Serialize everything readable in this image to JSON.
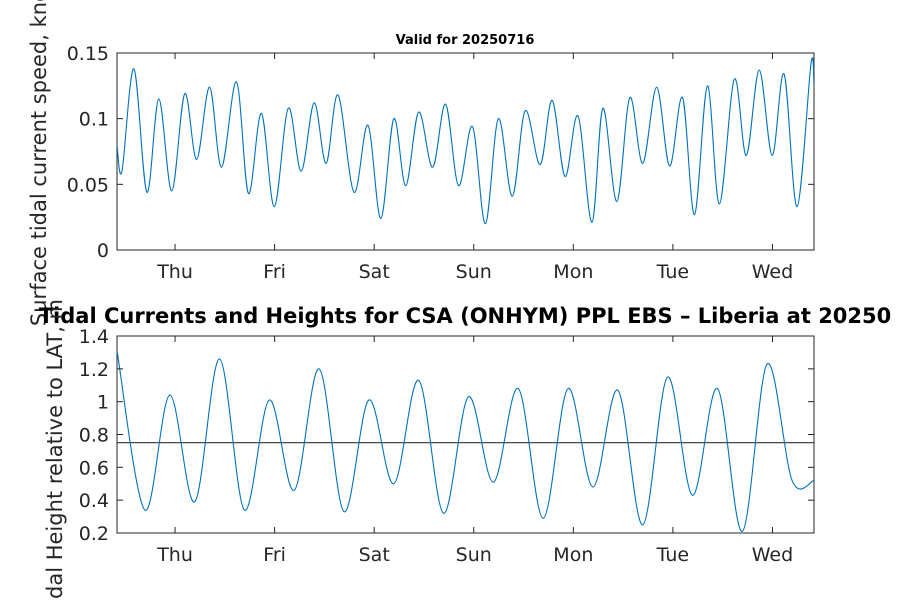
{
  "chart_data": [
    {
      "type": "line",
      "title": "Valid for 20250716",
      "ylabel": "Surface tidal current speed, knots",
      "ylim": [
        0,
        0.15
      ],
      "yticks": [
        0,
        0.05,
        0.1,
        0.15
      ],
      "ytick_labels": [
        "0",
        "0.05",
        "0.1",
        "0.15"
      ],
      "xlim": [
        0,
        7
      ],
      "xticks": [
        0.583,
        1.583,
        2.583,
        3.583,
        4.583,
        5.583,
        6.583
      ],
      "xtick_labels": [
        "Thu",
        "Fri",
        "Sat",
        "Sun",
        "Mon",
        "Tue",
        "Wed"
      ],
      "line_color": "#0072BD",
      "series": [
        {
          "x": [
            0.0,
            0.05,
            0.17,
            0.3,
            0.42,
            0.55,
            0.68,
            0.8,
            0.93,
            1.05,
            1.2,
            1.32,
            1.45,
            1.58,
            1.72,
            1.85,
            1.98,
            2.1,
            2.22,
            2.38,
            2.52,
            2.65,
            2.78,
            2.9,
            3.03,
            3.17,
            3.3,
            3.43,
            3.57,
            3.7,
            3.83,
            3.97,
            4.1,
            4.25,
            4.37,
            4.5,
            4.63,
            4.77,
            4.88,
            5.02,
            5.15,
            5.28,
            5.42,
            5.55,
            5.68,
            5.8,
            5.93,
            6.05,
            6.2,
            6.32,
            6.45,
            6.58,
            6.7,
            6.83,
            6.97,
            7.0
          ],
          "y": [
            0.08,
            0.06,
            0.138,
            0.044,
            0.115,
            0.045,
            0.119,
            0.069,
            0.124,
            0.063,
            0.128,
            0.043,
            0.104,
            0.033,
            0.108,
            0.06,
            0.112,
            0.066,
            0.118,
            0.044,
            0.095,
            0.024,
            0.1,
            0.049,
            0.105,
            0.063,
            0.111,
            0.049,
            0.094,
            0.02,
            0.1,
            0.041,
            0.106,
            0.065,
            0.114,
            0.056,
            0.102,
            0.021,
            0.108,
            0.037,
            0.116,
            0.066,
            0.124,
            0.064,
            0.116,
            0.027,
            0.125,
            0.035,
            0.13,
            0.072,
            0.137,
            0.072,
            0.134,
            0.033,
            0.142,
            0.125
          ]
        }
      ]
    },
    {
      "type": "line",
      "title": "Tidal Currents and Heights for CSA (ONHYM) PPL EBS  – Liberia at 20250",
      "ylabel": "Tidal Height relative to LAT, m",
      "ylim": [
        0.2,
        1.4
      ],
      "yticks": [
        0.2,
        0.4,
        0.6,
        0.8,
        1.0,
        1.2,
        1.4
      ],
      "ytick_labels": [
        "0.2",
        "0.4",
        "0.6",
        "0.8",
        "1",
        "1.2",
        "1.4"
      ],
      "xlim": [
        0,
        7
      ],
      "xticks": [
        0.583,
        1.583,
        2.583,
        3.583,
        4.583,
        5.583,
        6.583
      ],
      "xtick_labels": [
        "Thu",
        "Fri",
        "Sat",
        "Sun",
        "Mon",
        "Tue",
        "Wed"
      ],
      "reference_line": 0.75,
      "line_color": "#0072BD",
      "reference_color": "#333333",
      "series": [
        {
          "x": [
            0.0,
            0.28,
            0.53,
            0.78,
            1.03,
            1.28,
            1.53,
            1.78,
            2.03,
            2.28,
            2.53,
            2.78,
            3.03,
            3.28,
            3.53,
            3.78,
            4.03,
            4.28,
            4.53,
            4.78,
            5.03,
            5.28,
            5.53,
            5.78,
            6.03,
            6.28,
            6.53,
            6.78,
            7.0
          ],
          "y": [
            1.31,
            0.34,
            1.04,
            0.39,
            1.26,
            0.34,
            1.01,
            0.46,
            1.2,
            0.33,
            1.01,
            0.5,
            1.13,
            0.32,
            1.03,
            0.51,
            1.08,
            0.29,
            1.08,
            0.48,
            1.07,
            0.25,
            1.15,
            0.43,
            1.08,
            0.21,
            1.23,
            0.52,
            0.52
          ]
        }
      ]
    }
  ]
}
